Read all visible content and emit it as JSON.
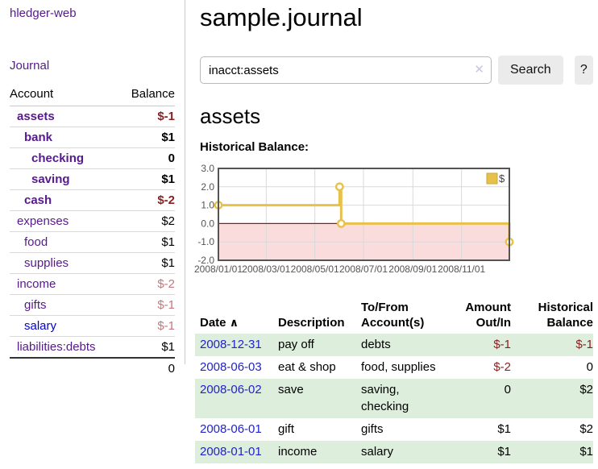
{
  "app": {
    "title": "hledger-web",
    "nav_journal": "Journal"
  },
  "sidebar": {
    "header": {
      "account": "Account",
      "balance": "Balance"
    },
    "accounts": [
      {
        "name": "assets",
        "balance": "$-1",
        "level": 1,
        "bold": true,
        "balance_class": "neg"
      },
      {
        "name": "bank",
        "balance": "$1",
        "level": 2,
        "bold": true,
        "balance_class": ""
      },
      {
        "name": "checking",
        "balance": "0",
        "level": 3,
        "bold": true,
        "balance_class": ""
      },
      {
        "name": "saving",
        "balance": "$1",
        "level": 3,
        "bold": true,
        "balance_class": ""
      },
      {
        "name": "cash",
        "balance": "$-2",
        "level": 2,
        "bold": true,
        "balance_class": "neg"
      },
      {
        "name": "expenses",
        "balance": "$2",
        "level": 1,
        "bold": false,
        "balance_class": ""
      },
      {
        "name": "food",
        "balance": "$1",
        "level": 2,
        "bold": false,
        "balance_class": ""
      },
      {
        "name": "supplies",
        "balance": "$1",
        "level": 2,
        "bold": false,
        "balance_class": ""
      },
      {
        "name": "income",
        "balance": "$-2",
        "level": 1,
        "bold": false,
        "balance_class": "lightneg"
      },
      {
        "name": "gifts",
        "balance": "$-1",
        "level": 2,
        "bold": false,
        "balance_class": "lightneg"
      },
      {
        "name": "salary",
        "balance": "$-1",
        "level": 2,
        "bold": false,
        "balance_class": "lightneg",
        "link_color": "blue"
      },
      {
        "name": "liabilities:debts",
        "balance": "$1",
        "level": 1,
        "bold": false,
        "balance_class": ""
      }
    ],
    "total": "0"
  },
  "header": {
    "title": "sample.journal"
  },
  "search": {
    "value": "inacct:assets",
    "clear_glyph": "✕",
    "button_label": "Search",
    "help_label": "?"
  },
  "account_page": {
    "title": "assets",
    "chart_label": "Historical Balance:"
  },
  "chart_data": {
    "type": "line",
    "step": true,
    "title": "Historical Balance",
    "x_start": "2008-01-01",
    "xlim_days": [
      0,
      365
    ],
    "ylim": [
      -2,
      3
    ],
    "y_ticks": [
      3.0,
      2.0,
      1.0,
      0.0,
      -1.0,
      -2.0
    ],
    "x_ticks": [
      "2008/01/01",
      "2008/03/01",
      "2008/05/01",
      "2008/07/01",
      "2008/09/01",
      "2008/11/01"
    ],
    "series": [
      {
        "name": "$",
        "color": "#e8c14b",
        "points": [
          [
            "2008-01-01",
            1
          ],
          [
            "2008-06-01",
            2
          ],
          [
            "2008-06-03",
            0
          ],
          [
            "2008-12-31",
            -1
          ]
        ]
      }
    ],
    "legend_position": "top-right",
    "grid": true,
    "colors": {
      "border": "#545454",
      "gridline": "#d9d9d9",
      "tick_text": "#545454",
      "negative_region": "#fbdcdc",
      "zero_line": "#8b1a1a",
      "marker_fill": "#ffffff",
      "legend_square": "#e8c14b",
      "legend_square_border": "#c9a83e"
    }
  },
  "transactions": {
    "columns": [
      "Date",
      "Description",
      "To/From Account(s)",
      "Amount Out/In",
      "Historical Balance"
    ],
    "sort_indicator": "∧",
    "rows": [
      {
        "date": "2008-12-31",
        "description": "pay off",
        "accounts": "debts",
        "amount": "$-1",
        "amount_class": "neg",
        "balance": "$-1",
        "balance_class": "neg"
      },
      {
        "date": "2008-06-03",
        "description": "eat & shop",
        "accounts": "food, supplies",
        "amount": "$-2",
        "amount_class": "neg",
        "balance": "0",
        "balance_class": ""
      },
      {
        "date": "2008-06-02",
        "description": "save",
        "accounts": "saving, checking",
        "amount": "0",
        "amount_class": "",
        "balance": "$2",
        "balance_class": ""
      },
      {
        "date": "2008-06-01",
        "description": "gift",
        "accounts": "gifts",
        "amount": "$1",
        "amount_class": "",
        "balance": "$2",
        "balance_class": ""
      },
      {
        "date": "2008-01-01",
        "description": "income",
        "accounts": "salary",
        "amount": "$1",
        "amount_class": "",
        "balance": "$1",
        "balance_class": ""
      }
    ]
  }
}
